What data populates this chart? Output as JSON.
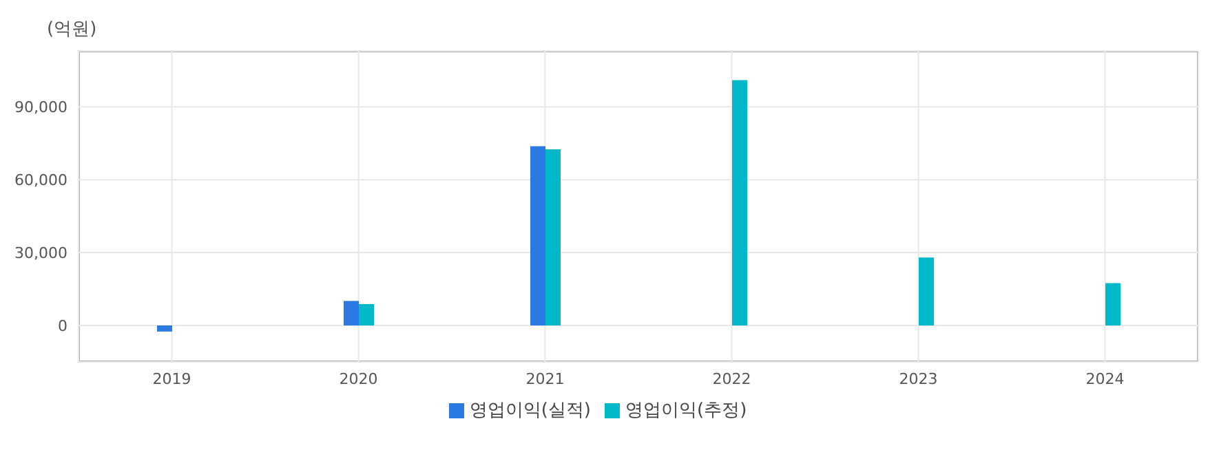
{
  "chart_data": {
    "type": "bar",
    "ylabel": "(억원)",
    "categories": [
      "2019",
      "2020",
      "2021",
      "2022",
      "2023",
      "2024"
    ],
    "series": [
      {
        "name": "영업이익(실적)",
        "color": "#2a7ae2",
        "values": [
          -2500,
          10100,
          73800,
          null,
          null,
          null
        ]
      },
      {
        "name": "영업이익(추정)",
        "color": "#00b8c8",
        "values": [
          null,
          8800,
          72500,
          101000,
          28000,
          17400
        ]
      }
    ],
    "ylim": [
      -15000,
      113000
    ],
    "yticks": [
      {
        "value": 0,
        "label": "0"
      },
      {
        "value": 30000,
        "label": "30,000"
      },
      {
        "value": 60000,
        "label": "60,000"
      },
      {
        "value": 90000,
        "label": "90,000"
      }
    ],
    "grid": true,
    "legend": "bottom"
  }
}
